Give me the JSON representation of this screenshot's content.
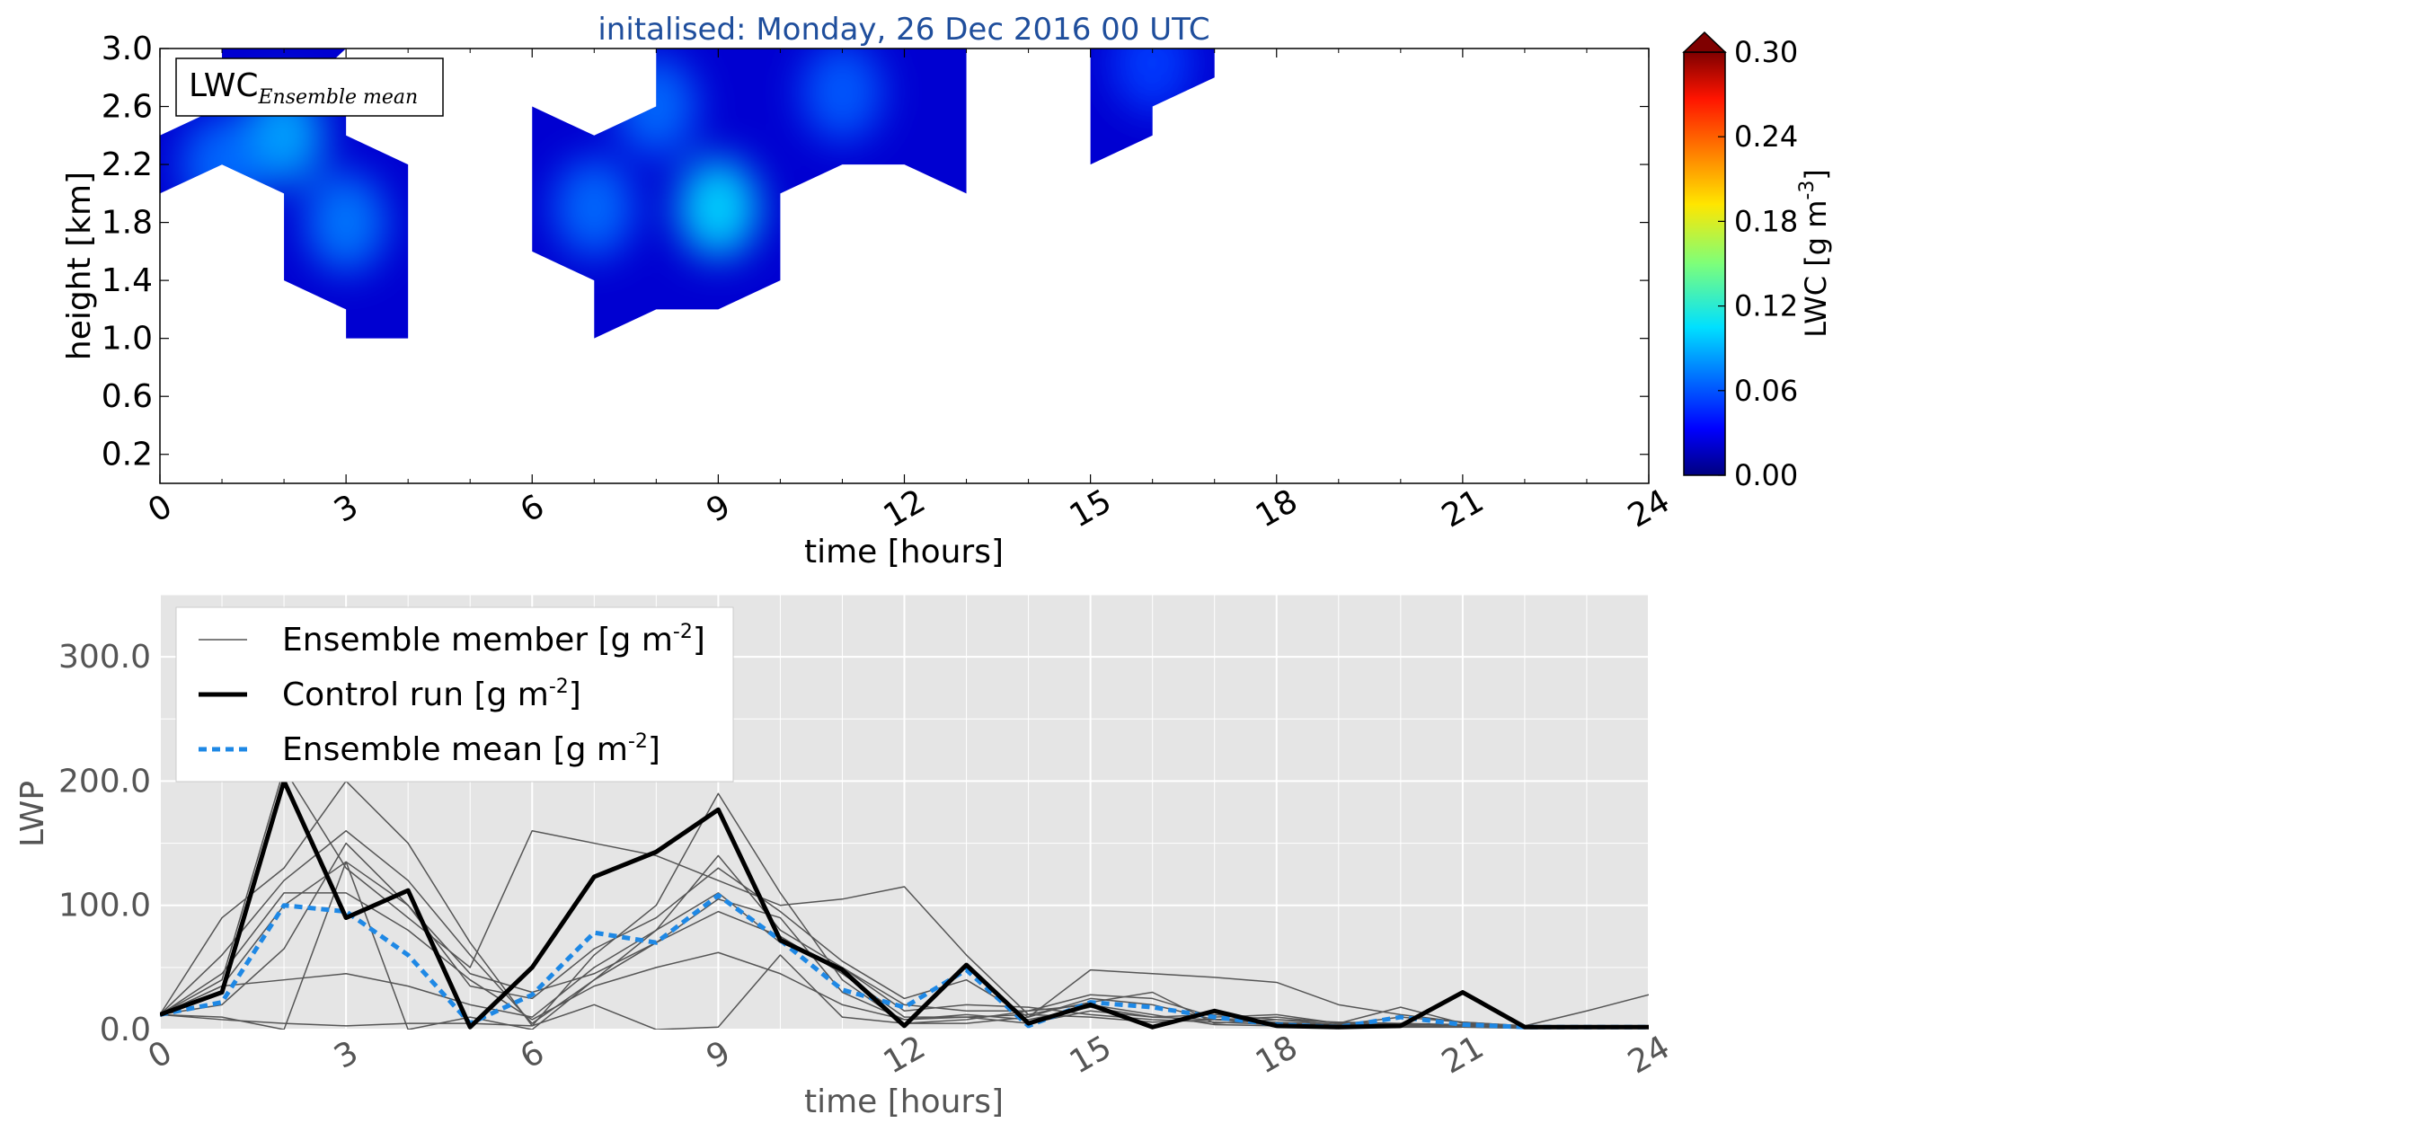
{
  "figure_title": "initalised: Monday, 26 Dec 2016 00 UTC",
  "colors": {
    "title": "#1f4e9c",
    "control": "#000000",
    "ensemble_mean": "#1e88e5",
    "member": "#555555",
    "panel_bg": "#e5e5e5"
  },
  "chart_data": [
    {
      "type": "heatmap",
      "xlabel": "time [hours]",
      "ylabel": "height [km]",
      "xlim": [
        0,
        24
      ],
      "ylim": [
        0.0,
        3.0
      ],
      "xticks": [
        "0",
        "3",
        "6",
        "9",
        "12",
        "15",
        "18",
        "21",
        "24"
      ],
      "yticks": [
        "0.2",
        "0.6",
        "1.0",
        "1.4",
        "1.8",
        "2.2",
        "2.6",
        "3.0"
      ],
      "legend_label": "LWC",
      "legend_label_sub": "Ensemble mean",
      "legend_position": "top-left",
      "colorbar": {
        "label": "LWC [g m",
        "label_sup": "-3",
        "label_end": "]",
        "ticks": [
          "0.00",
          "0.06",
          "0.12",
          "0.18",
          "0.24",
          "0.30"
        ],
        "range": [
          0.0,
          0.3
        ],
        "extend": "max"
      },
      "regions": [
        {
          "polygon": [
            [
              0,
              2.0
            ],
            [
              1,
              2.2
            ],
            [
              2,
              2.0
            ],
            [
              2,
              1.4
            ],
            [
              3,
              1.2
            ],
            [
              3,
              1.0
            ],
            [
              4,
              1.0
            ],
            [
              4,
              2.2
            ],
            [
              3,
              2.4
            ],
            [
              3,
              2.6
            ],
            [
              2,
              2.6
            ],
            [
              3,
              3.0
            ],
            [
              1,
              3.0
            ],
            [
              1,
              2.6
            ],
            [
              0,
              2.4
            ]
          ],
          "peaks": [
            [
              2,
              2.4,
              0.06
            ],
            [
              3,
              1.8,
              0.045
            ],
            [
              1,
              2.2,
              0.04
            ]
          ]
        },
        {
          "polygon": [
            [
              6,
              1.6
            ],
            [
              7,
              1.4
            ],
            [
              7,
              1.0
            ],
            [
              8,
              1.2
            ],
            [
              9,
              1.2
            ],
            [
              10,
              1.4
            ],
            [
              10,
              2.0
            ],
            [
              11,
              2.2
            ],
            [
              12,
              2.2
            ],
            [
              13,
              2.0
            ],
            [
              13,
              3.0
            ],
            [
              8,
              3.0
            ],
            [
              8,
              2.6
            ],
            [
              7,
              2.4
            ],
            [
              6,
              2.6
            ]
          ],
          "peaks": [
            [
              9,
              1.9,
              0.075
            ],
            [
              8,
              2.6,
              0.04
            ],
            [
              11,
              2.7,
              0.035
            ],
            [
              7,
              1.9,
              0.04
            ]
          ]
        },
        {
          "polygon": [
            [
              15,
              2.2
            ],
            [
              16,
              2.4
            ],
            [
              16,
              2.6
            ],
            [
              17,
              2.8
            ],
            [
              17,
              3.0
            ],
            [
              15,
              3.0
            ]
          ],
          "peaks": [
            [
              16,
              2.9,
              0.025
            ]
          ]
        }
      ]
    },
    {
      "type": "line",
      "xlabel": "time [hours]",
      "ylabel": "LWP",
      "xlim": [
        0,
        24
      ],
      "ylim": [
        0,
        350
      ],
      "xticks": [
        "0",
        "3",
        "6",
        "9",
        "12",
        "15",
        "18",
        "21",
        "24"
      ],
      "yticks": [
        "0.0",
        "100.0",
        "200.0",
        "300.0"
      ],
      "grid": true,
      "legend_position": "top-left",
      "x": [
        0,
        1,
        2,
        3,
        4,
        5,
        6,
        7,
        8,
        9,
        10,
        11,
        12,
        13,
        14,
        15,
        16,
        17,
        18,
        19,
        20,
        21,
        22,
        23,
        24
      ],
      "series": [
        {
          "name": "Ensemble member [g m",
          "name_sup": "-2",
          "name_end": "]",
          "role": "member",
          "values": [
            12,
            35,
            100,
            135,
            100,
            45,
            30,
            45,
            70,
            95,
            75,
            45,
            10,
            10,
            5,
            15,
            10,
            8,
            5,
            3,
            5,
            3,
            2,
            2,
            2
          ]
        },
        {
          "name": "Control run [g m",
          "name_sup": "-2",
          "name_end": "]",
          "role": "control",
          "values": [
            12,
            30,
            200,
            90,
            112,
            2,
            50,
            123,
            143,
            177,
            72,
            48,
            3,
            52,
            5,
            20,
            2,
            15,
            3,
            2,
            3,
            30,
            2,
            2,
            2
          ]
        },
        {
          "name": "Ensemble mean [g m",
          "name_sup": "-2",
          "name_end": "]",
          "role": "mean",
          "values": [
            12,
            22,
            100,
            95,
            60,
            5,
            28,
            78,
            70,
            108,
            72,
            32,
            18,
            48,
            3,
            22,
            18,
            10,
            4,
            2,
            10,
            4,
            2,
            2,
            2
          ]
        },
        {
          "role": "member",
          "values": [
            12,
            60,
            120,
            160,
            120,
            60,
            5,
            40,
            80,
            140,
            80,
            50,
            20,
            15,
            15,
            28,
            25,
            10,
            12,
            5,
            18,
            5,
            2,
            2,
            2
          ]
        },
        {
          "role": "member",
          "values": [
            12,
            90,
            130,
            200,
            150,
            70,
            3,
            60,
            100,
            190,
            110,
            40,
            5,
            5,
            10,
            48,
            45,
            42,
            38,
            20,
            12,
            6,
            3,
            2,
            2
          ]
        },
        {
          "role": "member",
          "values": [
            12,
            40,
            210,
            130,
            90,
            50,
            160,
            150,
            140,
            120,
            100,
            105,
            115,
            60,
            12,
            22,
            30,
            5,
            8,
            4,
            3,
            2,
            3,
            15,
            28
          ]
        },
        {
          "role": "member",
          "values": [
            12,
            35,
            40,
            45,
            35,
            20,
            10,
            50,
            80,
            110,
            70,
            50,
            15,
            20,
            18,
            12,
            8,
            6,
            4,
            3,
            2,
            2,
            1,
            2,
            2
          ]
        },
        {
          "role": "member",
          "values": [
            12,
            10,
            0,
            135,
            0,
            10,
            0,
            40,
            70,
            105,
            90,
            30,
            8,
            10,
            12,
            10,
            6,
            8,
            10,
            5,
            4,
            3,
            2,
            2,
            2
          ]
        },
        {
          "role": "member",
          "values": [
            12,
            8,
            5,
            3,
            5,
            5,
            3,
            20,
            0,
            2,
            60,
            10,
            5,
            8,
            15,
            20,
            12,
            4,
            3,
            2,
            2,
            2,
            2,
            2,
            2
          ]
        },
        {
          "role": "member",
          "values": [
            12,
            45,
            110,
            110,
            80,
            40,
            8,
            35,
            50,
            62,
            45,
            20,
            8,
            12,
            8,
            18,
            10,
            12,
            8,
            6,
            5,
            4,
            3,
            2,
            2
          ]
        },
        {
          "role": "member",
          "values": [
            12,
            20,
            65,
            150,
            100,
            35,
            25,
            65,
            90,
            130,
            95,
            55,
            25,
            40,
            10,
            25,
            20,
            8,
            6,
            4,
            10,
            6,
            3,
            2,
            2
          ]
        }
      ]
    }
  ]
}
